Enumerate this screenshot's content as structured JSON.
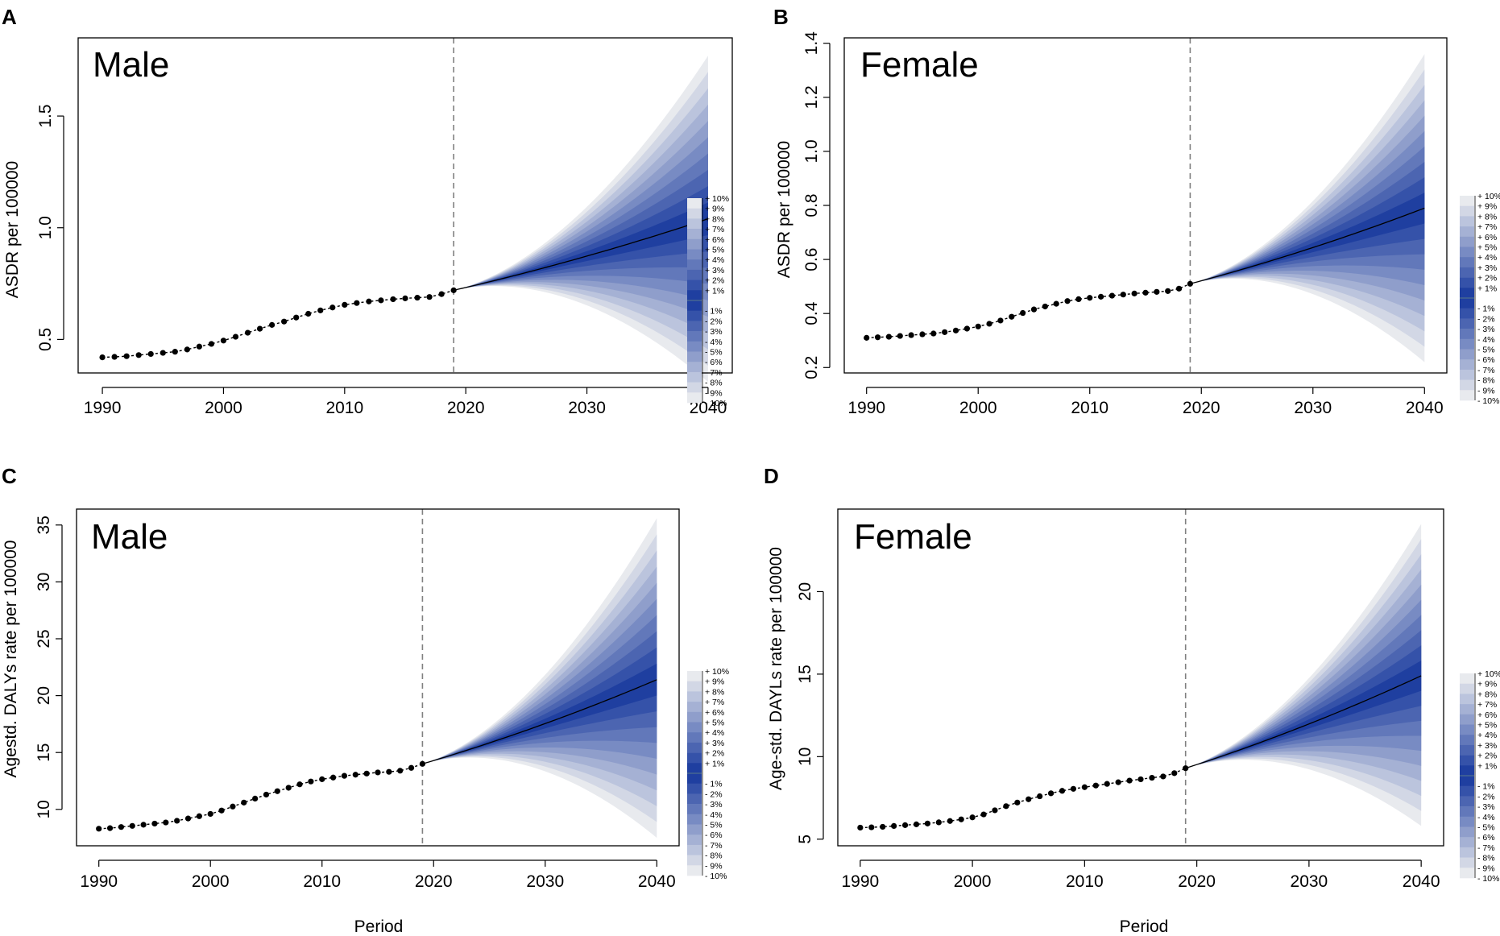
{
  "colors": {
    "fan_lightest": "#e8eaee",
    "fan_darkest": "#1f3fa0",
    "median_line": "#000000",
    "observed_points": "#000000",
    "vline": "#808080"
  },
  "legend_labels_upper": [
    "+ 10%",
    "+ 9%",
    "+ 8%",
    "+ 7%",
    "+ 6%",
    "+ 5%",
    "+ 4%",
    "+ 3%",
    "+ 2%",
    "+ 1%"
  ],
  "legend_labels_lower": [
    "- 1%",
    "- 2%",
    "- 3%",
    "- 4%",
    "- 5%",
    "- 6%",
    "- 7%",
    "- 8%",
    "- 9%",
    "- 10%"
  ],
  "chart_data": [
    {
      "panel": "A",
      "type": "line",
      "title": "Male",
      "xlabel": "",
      "ylabel": "ASDR per 100000",
      "xlim": [
        1988,
        2042
      ],
      "ylim": [
        0.35,
        1.85
      ],
      "xticks": [
        1990,
        2000,
        2010,
        2020,
        2030,
        2040
      ],
      "yticks": [
        0.5,
        1.0,
        1.5
      ],
      "ytick_labels": [
        "0.5",
        "1.0",
        "1.5"
      ],
      "projection_start": 2019,
      "observed": {
        "x": [
          1990,
          1991,
          1992,
          1993,
          1994,
          1995,
          1996,
          1997,
          1998,
          1999,
          2000,
          2001,
          2002,
          2003,
          2004,
          2005,
          2006,
          2007,
          2008,
          2009,
          2010,
          2011,
          2012,
          2013,
          2014,
          2015,
          2016,
          2017,
          2018,
          2019
        ],
        "y": [
          0.42,
          0.422,
          0.425,
          0.43,
          0.435,
          0.44,
          0.445,
          0.455,
          0.468,
          0.48,
          0.495,
          0.512,
          0.53,
          0.548,
          0.565,
          0.58,
          0.598,
          0.615,
          0.63,
          0.643,
          0.655,
          0.663,
          0.67,
          0.675,
          0.68,
          0.684,
          0.687,
          0.69,
          0.703,
          0.72
        ]
      },
      "projection": {
        "x_end": 2040,
        "median_end": 1.04,
        "upper_end": 1.77,
        "lower_end": 0.31
      }
    },
    {
      "panel": "B",
      "type": "line",
      "title": "Female",
      "xlabel": "",
      "ylabel": "ASDR  per 100000",
      "xlim": [
        1988,
        2042
      ],
      "ylim": [
        0.18,
        1.42
      ],
      "xticks": [
        1990,
        2000,
        2010,
        2020,
        2030,
        2040
      ],
      "yticks": [
        0.2,
        0.4,
        0.6,
        0.8,
        1.0,
        1.2,
        1.4
      ],
      "ytick_labels": [
        "0.2",
        "0.4",
        "0.6",
        "0.8",
        "1.0",
        "1.2",
        "1.4"
      ],
      "projection_start": 2019,
      "observed": {
        "x": [
          1990,
          1991,
          1992,
          1993,
          1994,
          1995,
          1996,
          1997,
          1998,
          1999,
          2000,
          2001,
          2002,
          2003,
          2004,
          2005,
          2006,
          2007,
          2008,
          2009,
          2010,
          2011,
          2012,
          2013,
          2014,
          2015,
          2016,
          2017,
          2018,
          2019
        ],
        "y": [
          0.31,
          0.312,
          0.314,
          0.317,
          0.32,
          0.323,
          0.326,
          0.331,
          0.337,
          0.344,
          0.352,
          0.362,
          0.374,
          0.388,
          0.402,
          0.415,
          0.426,
          0.436,
          0.446,
          0.453,
          0.458,
          0.462,
          0.466,
          0.47,
          0.474,
          0.477,
          0.48,
          0.483,
          0.492,
          0.51
        ]
      },
      "projection": {
        "x_end": 2040,
        "median_end": 0.79,
        "upper_end": 1.36,
        "lower_end": 0.22
      }
    },
    {
      "panel": "C",
      "type": "line",
      "title": "Male",
      "xlabel": "Period",
      "ylabel": "Agestd. DALYs rate per 100000",
      "xlim": [
        1988,
        2042
      ],
      "ylim": [
        6.8,
        36.4
      ],
      "xticks": [
        1990,
        2000,
        2010,
        2020,
        2030,
        2040
      ],
      "yticks": [
        10,
        15,
        20,
        25,
        30,
        35
      ],
      "ytick_labels": [
        "10",
        "15",
        "20",
        "25",
        "30",
        "35"
      ],
      "projection_start": 2019,
      "observed": {
        "x": [
          1990,
          1991,
          1992,
          1993,
          1994,
          1995,
          1996,
          1997,
          1998,
          1999,
          2000,
          2001,
          2002,
          2003,
          2004,
          2005,
          2006,
          2007,
          2008,
          2009,
          2010,
          2011,
          2012,
          2013,
          2014,
          2015,
          2016,
          2017,
          2018,
          2019
        ],
        "y": [
          8.3,
          8.35,
          8.45,
          8.55,
          8.65,
          8.75,
          8.85,
          9.0,
          9.2,
          9.4,
          9.6,
          9.9,
          10.25,
          10.6,
          10.95,
          11.3,
          11.6,
          11.9,
          12.2,
          12.45,
          12.65,
          12.8,
          12.95,
          13.05,
          13.15,
          13.25,
          13.3,
          13.4,
          13.65,
          14.0
        ]
      },
      "projection": {
        "x_end": 2040,
        "median_end": 21.4,
        "upper_end": 35.6,
        "lower_end": 7.5
      }
    },
    {
      "panel": "D",
      "type": "line",
      "title": "Female",
      "xlabel": "Period",
      "ylabel": "Age-std. DAYLs rate per 100000",
      "xlim": [
        1988,
        2042
      ],
      "ylim": [
        4.6,
        25.0
      ],
      "xticks": [
        1990,
        2000,
        2010,
        2020,
        2030,
        2040
      ],
      "yticks": [
        5,
        10,
        15,
        20
      ],
      "ytick_labels": [
        "5",
        "10",
        "15",
        "20"
      ],
      "projection_start": 2019,
      "observed": {
        "x": [
          1990,
          1991,
          1992,
          1993,
          1994,
          1995,
          1996,
          1997,
          1998,
          1999,
          2000,
          2001,
          2002,
          2003,
          2004,
          2005,
          2006,
          2007,
          2008,
          2009,
          2010,
          2011,
          2012,
          2013,
          2014,
          2015,
          2016,
          2017,
          2018,
          2019
        ],
        "y": [
          5.7,
          5.72,
          5.75,
          5.8,
          5.85,
          5.9,
          5.95,
          6.02,
          6.1,
          6.2,
          6.32,
          6.5,
          6.75,
          7.0,
          7.22,
          7.42,
          7.6,
          7.78,
          7.93,
          8.05,
          8.15,
          8.25,
          8.35,
          8.45,
          8.55,
          8.63,
          8.72,
          8.8,
          9.0,
          9.3
        ]
      },
      "projection": {
        "x_end": 2040,
        "median_end": 14.9,
        "upper_end": 24.1,
        "lower_end": 5.8
      }
    }
  ]
}
